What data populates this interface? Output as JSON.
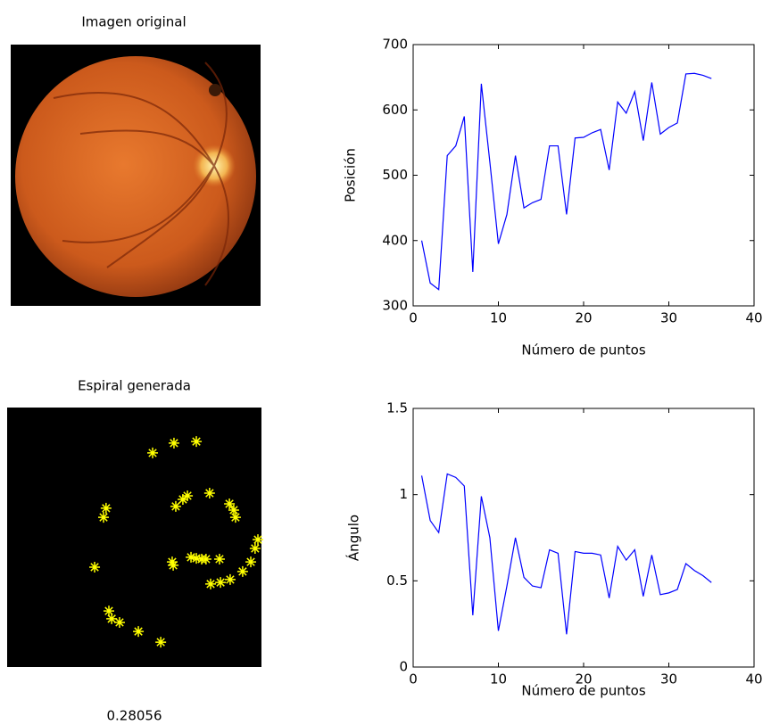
{
  "image_panel": {
    "title": "Imagen original"
  },
  "chart_data": [
    {
      "type": "scatter",
      "title": "Espiral generada",
      "annotation": "0.28056",
      "color": "#ffff00",
      "background": "#000000",
      "xlim": [
        0,
        100
      ],
      "ylim": [
        0,
        100
      ],
      "x": [
        57.2,
        65.6,
        74.4,
        38.9,
        37.9,
        66.3,
        69.1,
        70.9,
        79.6,
        87.4,
        89.1,
        89.8,
        34.4,
        64.9,
        65.3,
        72.3,
        74.4,
        76.5,
        78.2,
        83.5,
        80.0,
        83.9,
        87.7,
        92.6,
        95.8,
        97.5,
        98.6,
        40.0,
        41.1,
        44.2,
        51.6,
        60.4
      ],
      "values": [
        82.5,
        86.3,
        86.9,
        61.2,
        57.7,
        61.9,
        64.6,
        66.0,
        67.0,
        62.9,
        60.5,
        57.7,
        38.5,
        40.5,
        39.2,
        42.3,
        41.9,
        41.6,
        41.6,
        41.6,
        32.0,
        32.6,
        33.7,
        36.8,
        40.5,
        45.7,
        49.1,
        21.6,
        18.6,
        17.2,
        13.7,
        9.6
      ]
    },
    {
      "type": "line",
      "xlabel": "Número de puntos",
      "ylabel": "Posición",
      "color": "#0000ff",
      "xlim": [
        0,
        40
      ],
      "ylim": [
        300,
        700
      ],
      "xticks": [
        0,
        10,
        20,
        30,
        40
      ],
      "yticks": [
        300,
        400,
        500,
        600,
        700
      ],
      "x": [
        1,
        2,
        3,
        4,
        5,
        6,
        7,
        8,
        9,
        10,
        11,
        12,
        13,
        14,
        15,
        16,
        17,
        18,
        19,
        20,
        21,
        22,
        23,
        24,
        25,
        26,
        27,
        28,
        29,
        30,
        31,
        32,
        33,
        34,
        35
      ],
      "values": [
        400,
        335,
        325,
        530,
        545,
        590,
        352,
        640,
        520,
        395,
        440,
        530,
        450,
        458,
        463,
        545,
        545,
        440,
        557,
        558,
        565,
        570,
        508,
        612,
        595,
        628,
        553,
        642,
        563,
        573,
        580,
        655,
        656,
        653,
        648
      ]
    },
    {
      "type": "line",
      "xlabel": "Número de puntos",
      "ylabel": "Ángulo",
      "color": "#0000ff",
      "xlim": [
        0,
        40
      ],
      "ylim": [
        0,
        1.5
      ],
      "xticks": [
        0,
        10,
        20,
        30,
        40
      ],
      "yticks": [
        0,
        0.5,
        1,
        1.5
      ],
      "x": [
        1,
        2,
        3,
        4,
        5,
        6,
        7,
        8,
        9,
        10,
        11,
        12,
        13,
        14,
        15,
        16,
        17,
        18,
        19,
        20,
        21,
        22,
        23,
        24,
        25,
        26,
        27,
        28,
        29,
        30,
        31,
        32,
        33,
        34,
        35
      ],
      "values": [
        1.11,
        0.85,
        0.78,
        1.12,
        1.1,
        1.05,
        0.3,
        0.99,
        0.75,
        0.21,
        0.47,
        0.75,
        0.52,
        0.47,
        0.46,
        0.68,
        0.66,
        0.19,
        0.67,
        0.66,
        0.66,
        0.65,
        0.4,
        0.7,
        0.62,
        0.68,
        0.41,
        0.65,
        0.42,
        0.43,
        0.45,
        0.6,
        0.56,
        0.53,
        0.49
      ]
    }
  ]
}
